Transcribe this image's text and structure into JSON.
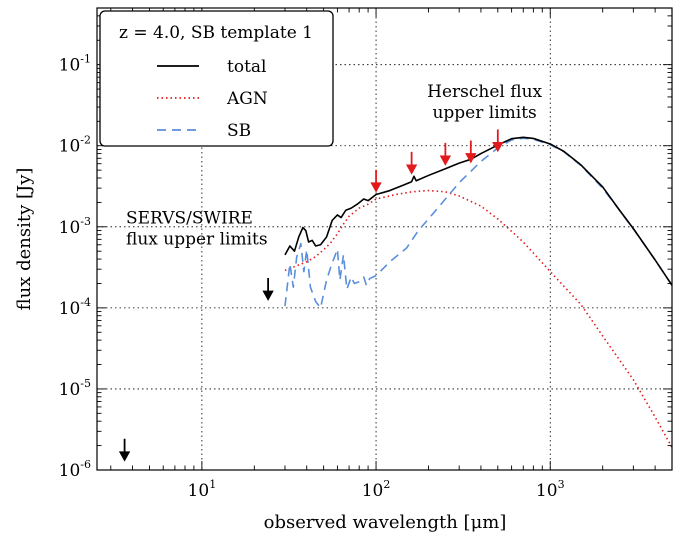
{
  "chart_data": {
    "type": "line",
    "xscale": "log",
    "yscale": "log",
    "xlim": [
      2.5,
      5000
    ],
    "ylim": [
      1e-06,
      0.5
    ],
    "xlabel": "observed wavelength [μm]",
    "ylabel": "flux density [Jy]",
    "grid": true,
    "x_ticks": [
      {
        "base": "10",
        "exp": "1",
        "value": 10
      },
      {
        "base": "10",
        "exp": "2",
        "value": 100
      },
      {
        "base": "10",
        "exp": "3",
        "value": 1000
      }
    ],
    "y_ticks": [
      {
        "base": "10",
        "exp": "-6",
        "value": 1e-06
      },
      {
        "base": "10",
        "exp": "-5",
        "value": 1e-05
      },
      {
        "base": "10",
        "exp": "-4",
        "value": 0.0001
      },
      {
        "base": "10",
        "exp": "-3",
        "value": 0.001
      },
      {
        "base": "10",
        "exp": "-2",
        "value": 0.01
      },
      {
        "base": "10",
        "exp": "-1",
        "value": 0.1
      }
    ],
    "legend": {
      "placement": "top-left",
      "title": "z = 4.0, SB template 1",
      "entries": [
        "total",
        "AGN",
        "SB"
      ]
    },
    "series": [
      {
        "name": "total",
        "color": "#000000",
        "style": "solid",
        "points": [
          [
            30,
            0.00045
          ],
          [
            32,
            0.00058
          ],
          [
            34,
            0.0005
          ],
          [
            36,
            0.00075
          ],
          [
            38,
            0.00098
          ],
          [
            39.5,
            0.0009
          ],
          [
            41,
            0.00065
          ],
          [
            43,
            0.00068
          ],
          [
            45,
            0.00058
          ],
          [
            48,
            0.0006
          ],
          [
            52,
            0.00075
          ],
          [
            56,
            0.0012
          ],
          [
            60,
            0.0014
          ],
          [
            63,
            0.0013
          ],
          [
            67,
            0.0016
          ],
          [
            72,
            0.0017
          ],
          [
            78,
            0.0019
          ],
          [
            85,
            0.0022
          ],
          [
            90,
            0.0021
          ],
          [
            100,
            0.0025
          ],
          [
            120,
            0.0028
          ],
          [
            140,
            0.0032
          ],
          [
            160,
            0.0036
          ],
          [
            165,
            0.0042
          ],
          [
            170,
            0.0037
          ],
          [
            200,
            0.0043
          ],
          [
            250,
            0.0052
          ],
          [
            300,
            0.0061
          ],
          [
            350,
            0.0068
          ],
          [
            400,
            0.008
          ],
          [
            500,
            0.0102
          ],
          [
            600,
            0.0122
          ],
          [
            700,
            0.0127
          ],
          [
            800,
            0.0123
          ],
          [
            1000,
            0.0105
          ],
          [
            1200,
            0.0085
          ],
          [
            1500,
            0.0058
          ],
          [
            2000,
            0.0031
          ],
          [
            2500,
            0.0016
          ],
          [
            3000,
            0.00095
          ],
          [
            4000,
            0.00039
          ],
          [
            5000,
            0.00019
          ]
        ]
      },
      {
        "name": "AGN",
        "color": "#e31a1c",
        "style": "dotted",
        "points": [
          [
            30,
            0.00029
          ],
          [
            35,
            0.00033
          ],
          [
            40,
            0.00037
          ],
          [
            45,
            0.00043
          ],
          [
            50,
            0.00052
          ],
          [
            55,
            0.00064
          ],
          [
            60,
            0.00082
          ],
          [
            65,
            0.00108
          ],
          [
            70,
            0.00135
          ],
          [
            80,
            0.0017
          ],
          [
            90,
            0.0019
          ],
          [
            100,
            0.0022
          ],
          [
            130,
            0.0025
          ],
          [
            160,
            0.0027
          ],
          [
            200,
            0.0028
          ],
          [
            250,
            0.0027
          ],
          [
            300,
            0.0024
          ],
          [
            400,
            0.0018
          ],
          [
            500,
            0.00125
          ],
          [
            700,
            0.00065
          ],
          [
            1000,
            0.00028
          ],
          [
            1500,
            0.00011
          ],
          [
            2000,
            4.5e-05
          ],
          [
            3000,
            1.3e-05
          ],
          [
            4000,
            4.5e-06
          ],
          [
            5000,
            1.9e-06
          ]
        ]
      },
      {
        "name": "SB",
        "color": "#5b8fdc",
        "style": "dashed",
        "points": [
          [
            30,
            0.000105
          ],
          [
            32,
            0.00035
          ],
          [
            33.5,
            0.00018
          ],
          [
            35,
            0.00042
          ],
          [
            37,
            0.00062
          ],
          [
            38.5,
            0.00028
          ],
          [
            40,
            0.00052
          ],
          [
            42,
            0.00018
          ],
          [
            45,
            0.00012
          ],
          [
            48,
            0.0001
          ],
          [
            52,
            0.00022
          ],
          [
            55,
            0.00032
          ],
          [
            60,
            0.00053
          ],
          [
            62,
            0.00022
          ],
          [
            65,
            0.00045
          ],
          [
            68,
            0.00017
          ],
          [
            72,
            0.00024
          ],
          [
            75,
            0.0002
          ],
          [
            80,
            0.00021
          ],
          [
            85,
            0.00024
          ],
          [
            88,
            0.00019
          ],
          [
            92,
            0.00023
          ],
          [
            100,
            0.00025
          ],
          [
            120,
            0.00037
          ],
          [
            150,
            0.00055
          ],
          [
            175,
            0.0009
          ],
          [
            200,
            0.00125
          ],
          [
            250,
            0.0022
          ],
          [
            300,
            0.0035
          ],
          [
            400,
            0.0064
          ],
          [
            500,
            0.0094
          ],
          [
            600,
            0.0118
          ],
          [
            700,
            0.0124
          ],
          [
            800,
            0.012
          ],
          [
            1000,
            0.0103
          ],
          [
            1200,
            0.0084
          ],
          [
            1500,
            0.0057
          ],
          [
            2000,
            0.003
          ],
          [
            2500,
            0.0016
          ],
          [
            3000,
            0.00094
          ],
          [
            4000,
            0.00039
          ],
          [
            5000,
            0.00019
          ]
        ]
      }
    ],
    "herschel_upper_limits": {
      "color": "#e31a1c",
      "points": [
        [
          100,
          0.0027
        ],
        [
          160,
          0.0045
        ],
        [
          250,
          0.0058
        ],
        [
          350,
          0.0062
        ],
        [
          500,
          0.0085
        ]
      ]
    },
    "servs_swire_upper_limits": {
      "color": "#000000",
      "points": [
        [
          3.6,
          1.3e-06
        ],
        [
          24,
          0.000125
        ]
      ]
    },
    "annotations": [
      {
        "id": "herschel",
        "lines": [
          "Herschel flux",
          "upper limits"
        ],
        "x": 420,
        "y": 0.04
      },
      {
        "id": "servs",
        "lines": [
          "SERVS/SWIRE",
          "flux upper limits"
        ],
        "x": 3.3,
        "y": 0.0011
      }
    ]
  }
}
